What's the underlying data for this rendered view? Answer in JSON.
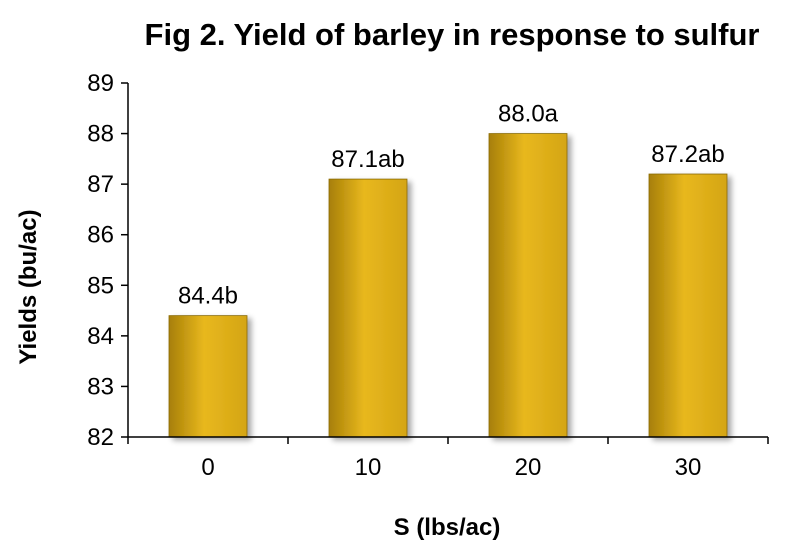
{
  "chart_data": {
    "type": "bar",
    "title": "Fig 2. Yield of barley in response to sulfur",
    "xlabel": "S (lbs/ac)",
    "ylabel": "Yields (bu/ac)",
    "categories": [
      "0",
      "10",
      "20",
      "30"
    ],
    "values": [
      84.4,
      87.1,
      88.0,
      87.2
    ],
    "data_labels": [
      "84.4b",
      "87.1ab",
      "88.0a",
      "87.2ab"
    ],
    "ylim": [
      82,
      89
    ],
    "yticks": [
      "82",
      "83",
      "84",
      "85",
      "86",
      "87",
      "88",
      "89"
    ],
    "grid": false,
    "legend": "none",
    "bar_color": "#D4A514",
    "bar_highlight": "#E8B81E",
    "bar_shade": "#A77F08"
  }
}
